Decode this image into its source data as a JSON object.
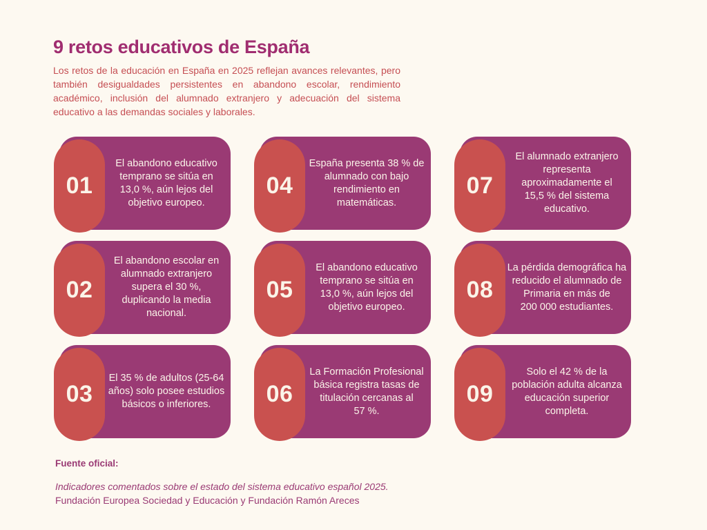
{
  "header": {
    "title": "9 retos educativos de España",
    "intro": "Los retos de la educación en España en 2025 reflejan avances relevantes, pero también desigualdades persistentes en abandono escolar, rendimiento académico, inclusión del alumnado extranjero y adecuación del sistema educativo a las demandas sociales y laborales."
  },
  "cards": [
    {
      "number": "01",
      "text": "El abandono educativo temprano se sitúa en 13,0 %, aún lejos del objetivo europeo."
    },
    {
      "number": "02",
      "text": "El abandono escolar en alumnado extranjero supera el 30 %, duplicando la media nacional."
    },
    {
      "number": "03",
      "text": "El 35 % de adultos (25-64 años) solo posee estudios básicos o inferiores."
    },
    {
      "number": "04",
      "text": "España presenta 38 % de alumnado con bajo rendimiento en matemáticas."
    },
    {
      "number": "05",
      "text": "El abandono educativo temprano se sitúa en 13,0 %, aún lejos del objetivo europeo."
    },
    {
      "number": "06",
      "text": "La Formación Profesional básica registra tasas de titulación cercanas al 57 %."
    },
    {
      "number": "07",
      "text": "El alumnado extranjero representa aproximadamente el 15,5 % del sistema educativo."
    },
    {
      "number": "08",
      "text": "La pérdida demográfica ha reducido el alumnado de Primaria en más de 200 000 estudiantes."
    },
    {
      "number": "09",
      "text": "Solo el 42 % de la población adulta alcanza educación superior completa."
    }
  ],
  "footer": {
    "label": "Fuente oficial:",
    "source_italic": "Indicadores comentados sobre el estado del sistema educativo español 2025.",
    "source_regular": "Fundación Europea Sociedad y Educación y Fundación Ramón Areces"
  },
  "colors": {
    "page_bg": "#fdf9f1",
    "title_color": "#a02d70",
    "intro_color": "#c54e53",
    "card_bg": "#9a3a74",
    "badge_bg": "#c9514f",
    "card_text": "#fbf4e9",
    "footer_color": "#9a3a74"
  }
}
